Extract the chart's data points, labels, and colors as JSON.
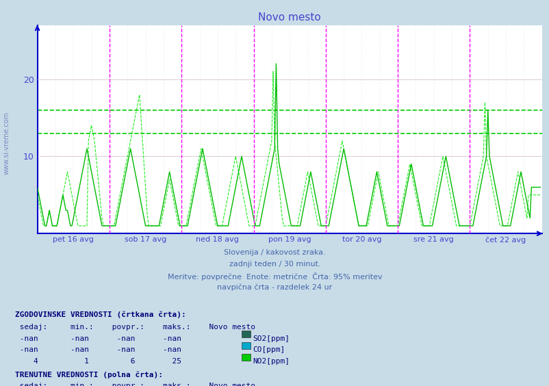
{
  "title": "Novo mesto",
  "bg_color": "#c8dce8",
  "plot_bg_color": "#ffffff",
  "title_color": "#4444cc",
  "axis_color": "#0000cc",
  "tick_label_color": "#4444cc",
  "vline_color": "#ff00ff",
  "grid_color": "#ccccdd",
  "hline_green_values": [
    13.0,
    16.0
  ],
  "hline_red_values": [
    10.0,
    20.0
  ],
  "ylim": [
    0,
    27
  ],
  "yticks": [
    10,
    20
  ],
  "xlabel_labels": [
    "pet 16 avg",
    "sob 17 avg",
    "ned 18 avg",
    "pon 19 avg",
    "tor 20 avg",
    "sre 21 avg",
    "čet 22 avg"
  ],
  "subtitle_lines": [
    "Slovenija / kakovost zraka.",
    "zadnji teden / 30 minut.",
    "Meritve: povprečne  Enote: metrične  Črta: 95% meritev",
    "navpična črta - razdelek 24 ur"
  ],
  "n_per_day": 48,
  "n_days": 7,
  "watermark": "www.si-vreme.com",
  "no2_solid": [
    6,
    5,
    4,
    3,
    2,
    1,
    1,
    2,
    3,
    2,
    1,
    1,
    1,
    1,
    2,
    3,
    4,
    5,
    4,
    3,
    3,
    2,
    1,
    1,
    2,
    3,
    4,
    5,
    6,
    7,
    8,
    9,
    10,
    11,
    10,
    9,
    8,
    7,
    6,
    5,
    4,
    3,
    2,
    1,
    1,
    1,
    1,
    1,
    1,
    1,
    1,
    1,
    1,
    2,
    3,
    4,
    5,
    6,
    7,
    8,
    9,
    10,
    11,
    10,
    9,
    8,
    7,
    6,
    5,
    4,
    3,
    2,
    1,
    1,
    1,
    1,
    1,
    1,
    1,
    1,
    1,
    1,
    2,
    3,
    4,
    5,
    6,
    7,
    8,
    7,
    6,
    5,
    4,
    3,
    2,
    1,
    1,
    1,
    1,
    1,
    1,
    2,
    3,
    4,
    5,
    6,
    7,
    8,
    9,
    10,
    11,
    10,
    9,
    8,
    7,
    6,
    5,
    4,
    3,
    2,
    1,
    1,
    1,
    1,
    1,
    1,
    1,
    1,
    2,
    3,
    4,
    5,
    6,
    7,
    8,
    9,
    10,
    9,
    8,
    7,
    6,
    5,
    4,
    3,
    2,
    1,
    1,
    1,
    1,
    2,
    3,
    4,
    5,
    6,
    7,
    8,
    9,
    10,
    11,
    22,
    11,
    9,
    8,
    7,
    6,
    5,
    4,
    3,
    2,
    1,
    1,
    1,
    1,
    1,
    1,
    1,
    2,
    3,
    4,
    5,
    6,
    7,
    8,
    7,
    6,
    5,
    4,
    3,
    2,
    1,
    1,
    1,
    1,
    1,
    1,
    2,
    3,
    4,
    5,
    6,
    7,
    8,
    9,
    10,
    11,
    10,
    9,
    8,
    7,
    6,
    5,
    4,
    3,
    2,
    1,
    1,
    1,
    1,
    1,
    1,
    2,
    3,
    4,
    5,
    6,
    7,
    8,
    7,
    6,
    5,
    4,
    3,
    2,
    1,
    1,
    1,
    1,
    1,
    1,
    1,
    1,
    1,
    2,
    3,
    4,
    5,
    6,
    7,
    8,
    9,
    8,
    7,
    6,
    5,
    4,
    3,
    2,
    1,
    1,
    1,
    1,
    1,
    1,
    1,
    2,
    3,
    4,
    5,
    6,
    7,
    8,
    9,
    10,
    9,
    8,
    7,
    6,
    5,
    4,
    3,
    2,
    1,
    1,
    1,
    1,
    1,
    1,
    1,
    1,
    1,
    1,
    2,
    3,
    4,
    5,
    6,
    7,
    8,
    9,
    10,
    16,
    10,
    9,
    8,
    7,
    6,
    5,
    4,
    3,
    2,
    1,
    1,
    1,
    1,
    1,
    1,
    2,
    3,
    4,
    5,
    6,
    7,
    8,
    7,
    6,
    5,
    4,
    3,
    2,
    6
  ],
  "no2_dashed": [
    5,
    4,
    3,
    2,
    1,
    1,
    1,
    2,
    3,
    2,
    1,
    1,
    1,
    1,
    2,
    3,
    4,
    5,
    6,
    7,
    8,
    7,
    6,
    5,
    4,
    3,
    2,
    1,
    1,
    1,
    1,
    1,
    1,
    1,
    12,
    13,
    14,
    13,
    12,
    10,
    8,
    6,
    4,
    2,
    1,
    1,
    1,
    1,
    1,
    1,
    1,
    1,
    2,
    3,
    4,
    5,
    6,
    7,
    8,
    9,
    10,
    11,
    12,
    13,
    14,
    15,
    16,
    17,
    18,
    15,
    12,
    9,
    6,
    3,
    1,
    1,
    1,
    1,
    1,
    1,
    1,
    1,
    1,
    2,
    3,
    4,
    5,
    6,
    7,
    6,
    5,
    4,
    3,
    2,
    1,
    1,
    1,
    1,
    1,
    1,
    2,
    3,
    4,
    5,
    6,
    7,
    8,
    9,
    10,
    11,
    10,
    9,
    8,
    7,
    6,
    5,
    4,
    3,
    2,
    1,
    1,
    1,
    1,
    1,
    2,
    3,
    4,
    5,
    6,
    7,
    8,
    9,
    10,
    9,
    8,
    7,
    6,
    5,
    4,
    3,
    2,
    1,
    1,
    1,
    1,
    1,
    2,
    3,
    4,
    5,
    6,
    7,
    8,
    9,
    10,
    11,
    12,
    21,
    12,
    10,
    8,
    6,
    4,
    2,
    1,
    1,
    1,
    1,
    1,
    1,
    1,
    1,
    1,
    1,
    2,
    3,
    4,
    5,
    6,
    7,
    8,
    7,
    6,
    5,
    4,
    3,
    2,
    1,
    1,
    1,
    1,
    1,
    1,
    2,
    3,
    4,
    5,
    6,
    7,
    8,
    9,
    10,
    11,
    12,
    11,
    10,
    9,
    8,
    7,
    6,
    5,
    4,
    3,
    2,
    1,
    1,
    1,
    1,
    1,
    1,
    1,
    2,
    3,
    4,
    5,
    6,
    7,
    8,
    7,
    6,
    5,
    4,
    3,
    2,
    1,
    1,
    1,
    1,
    1,
    1,
    1,
    2,
    3,
    4,
    5,
    6,
    7,
    8,
    9,
    8,
    7,
    6,
    5,
    4,
    3,
    2,
    1,
    1,
    1,
    1,
    1,
    1,
    2,
    3,
    4,
    5,
    6,
    7,
    8,
    9,
    10,
    9,
    8,
    7,
    6,
    5,
    4,
    3,
    2,
    1,
    1,
    1,
    1,
    1,
    1,
    1,
    1,
    1,
    1,
    2,
    3,
    4,
    5,
    6,
    7,
    8,
    9,
    10,
    17,
    10,
    9,
    8,
    7,
    6,
    5,
    4,
    3,
    2,
    1,
    1,
    1,
    1,
    1,
    1,
    2,
    3,
    4,
    5,
    6,
    7,
    8,
    7,
    6,
    5,
    4,
    3,
    2,
    5
  ],
  "swatch_colors_hist": [
    "#226655",
    "#00aacc",
    "#00cc00"
  ],
  "swatch_colors_curr": [
    "#004444",
    "#00aacc",
    "#00aa00"
  ]
}
